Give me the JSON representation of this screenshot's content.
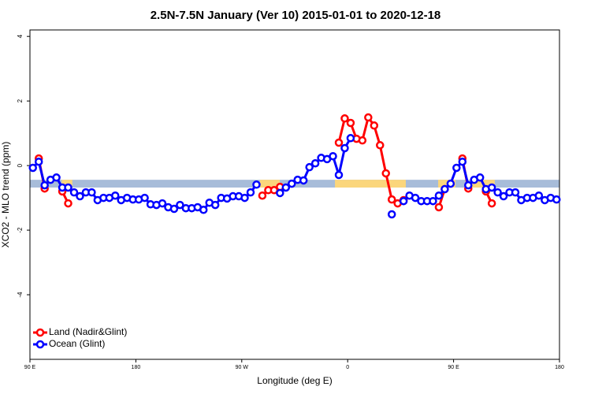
{
  "chart_data": {
    "type": "line",
    "title": "2.5N-7.5N January (Ver 10)   2015-01-01 to 2020-12-18",
    "x_label": "Longitude (deg E)",
    "y_label": "XCO2 - MLO trend (ppm)",
    "xlim": [
      -270,
      180
    ],
    "xticks": [
      {
        "value": -270,
        "label": "90 E"
      },
      {
        "value": -180,
        "label": "180"
      },
      {
        "value": -90,
        "label": "90 W"
      },
      0,
      {
        "value": 90,
        "label": "90 E"
      },
      {
        "value": 180,
        "label": "180"
      }
    ],
    "ylim": [
      -6,
      4.2
    ],
    "yticks": [
      4,
      2,
      0,
      -2,
      -4
    ],
    "band": [
      -0.68,
      -0.44
    ],
    "band_color": "#a7bcd9",
    "land_spans": [
      [
        -243,
        -234
      ],
      [
        -74.5,
        -57.7
      ],
      [
        -10.8,
        49.4
      ],
      [
        76.9,
        91.6
      ],
      [
        105,
        125
      ]
    ],
    "land_color": "#fbd67c",
    "legend": "bottom-left",
    "x": [
      -267.5,
      -262.5,
      -257.5,
      -252.5,
      -247.5,
      -242.5,
      -237.5,
      -232.5,
      -227.5,
      -222.5,
      -217.5,
      -212.5,
      -207.5,
      -202.5,
      -197.5,
      -192.5,
      -187.5,
      -182.5,
      -177.5,
      -172.5,
      -167.5,
      -162.5,
      -157.5,
      -152.5,
      -147.5,
      -142.5,
      -137.5,
      -132.5,
      -127.5,
      -122.5,
      -117.5,
      -112.5,
      -107.5,
      -102.5,
      -97.5,
      -92.5,
      -87.5,
      -82.5,
      -77.5,
      -72.5,
      -67.5,
      -62.5,
      -57.5,
      -52.5,
      -47.5,
      -42.5,
      -37.5,
      -32.5,
      -27.5,
      -22.5,
      -17.5,
      -12.5,
      -7.5,
      -2.5,
      2.5,
      7.5,
      12.5,
      17.5,
      22.5,
      27.5,
      32.5,
      37.5,
      42.5,
      47.5,
      52.5,
      57.5,
      62.5,
      67.5,
      72.5,
      77.5,
      82.5,
      87.5,
      92.5,
      97.5,
      102.5,
      107.5,
      112.5,
      117.5,
      122.5,
      127.5,
      132.5,
      137.5,
      142.5,
      147.5,
      152.5,
      157.5,
      162.5,
      167.5,
      172.5,
      177.5
    ],
    "series": [
      {
        "name": "Land (Nadir&Glint)",
        "color": "#ff0000",
        "values": [
          null,
          0.22,
          -0.71,
          null,
          null,
          -0.8,
          -1.17,
          null,
          null,
          null,
          null,
          null,
          null,
          null,
          null,
          null,
          null,
          null,
          null,
          null,
          null,
          null,
          null,
          null,
          null,
          null,
          null,
          null,
          null,
          null,
          null,
          null,
          null,
          null,
          null,
          null,
          null,
          null,
          null,
          -0.93,
          -0.76,
          -0.76,
          -0.66,
          null,
          null,
          null,
          null,
          null,
          null,
          null,
          null,
          null,
          0.71,
          1.46,
          1.32,
          0.83,
          0.78,
          1.49,
          1.24,
          0.63,
          -0.24,
          -1.05,
          -1.17,
          -1.07,
          null,
          null,
          null,
          null,
          null,
          -1.29,
          -0.73,
          null,
          null,
          0.22,
          -0.71,
          null,
          null,
          -0.8,
          -1.17,
          null,
          null,
          null,
          null,
          null,
          null,
          null,
          null,
          null,
          null,
          null
        ]
      },
      {
        "name": "Ocean (Glint)",
        "color": "#0000ff",
        "values": [
          -0.07,
          0.12,
          -0.61,
          -0.44,
          -0.37,
          -0.68,
          -0.68,
          -0.83,
          -0.95,
          -0.83,
          -0.83,
          -1.07,
          -1.0,
          -1.0,
          -0.93,
          -1.07,
          -1.0,
          -1.05,
          -1.05,
          -1.0,
          -1.2,
          -1.22,
          -1.17,
          -1.29,
          -1.34,
          -1.22,
          -1.32,
          -1.32,
          -1.29,
          -1.37,
          -1.15,
          -1.22,
          -1.0,
          -1.02,
          -0.95,
          -0.95,
          -1.0,
          -0.83,
          -0.59,
          null,
          null,
          null,
          -0.85,
          -0.68,
          -0.56,
          -0.44,
          -0.46,
          -0.05,
          0.07,
          0.24,
          0.2,
          0.29,
          -0.29,
          0.54,
          0.85,
          null,
          null,
          null,
          null,
          null,
          null,
          -1.51,
          null,
          -1.1,
          -0.93,
          -1.0,
          -1.1,
          -1.1,
          -1.1,
          -0.93,
          -0.73,
          -0.56,
          -0.07,
          0.12,
          -0.61,
          -0.44,
          -0.37,
          -0.73,
          -0.68,
          -0.83,
          -0.95,
          -0.83,
          -0.83,
          -1.07,
          -1.0,
          -1.0,
          -0.93,
          -1.07,
          -1.0,
          -1.05
        ]
      }
    ]
  }
}
